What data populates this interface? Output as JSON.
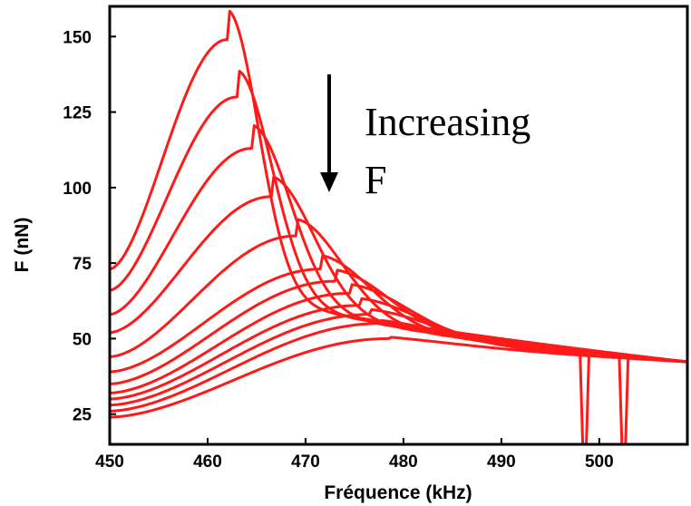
{
  "chart_data": {
    "type": "line",
    "xlabel": "Fréquence (kHz)",
    "ylabel": "F (nN)",
    "x_ticks": [
      "450",
      "460",
      "470",
      "480",
      "490",
      "500"
    ],
    "y_ticks": [
      "25",
      "50",
      "75",
      "100",
      "125",
      "150"
    ],
    "xlim": [
      450,
      509
    ],
    "ylim": [
      15,
      160
    ],
    "grid": false,
    "annotation": {
      "lines": [
        "Increasing",
        "F"
      ]
    },
    "colors": {
      "series": "#ff1a1a",
      "axis": "#000000"
    },
    "series": [
      {
        "peak_x": 462.0,
        "peak_y": 149,
        "start_y": 73
      },
      {
        "peak_x": 463.0,
        "peak_y": 130,
        "start_y": 66
      },
      {
        "peak_x": 464.5,
        "peak_y": 113,
        "start_y": 58
      },
      {
        "peak_x": 466.5,
        "peak_y": 97,
        "start_y": 52
      },
      {
        "peak_x": 469.0,
        "peak_y": 84,
        "start_y": 44
      },
      {
        "peak_x": 471.5,
        "peak_y": 73,
        "start_y": 39
      },
      {
        "peak_x": 473.0,
        "peak_y": 69,
        "start_y": 35
      },
      {
        "peak_x": 474.5,
        "peak_y": 65,
        "start_y": 32
      },
      {
        "peak_x": 475.5,
        "peak_y": 61,
        "start_y": 30
      },
      {
        "peak_x": 476.5,
        "peak_y": 58,
        "start_y": 28
      },
      {
        "peak_x": 477.5,
        "peak_y": 55,
        "start_y": 26
      },
      {
        "peak_x": 478.5,
        "peak_y": 50,
        "start_y": 24
      }
    ],
    "tail": {
      "x_at_490": 490,
      "y_at_490": 46,
      "x_end": 509,
      "y_end": 33
    },
    "dropouts": [
      {
        "x": 498.5,
        "depth_y": 15
      },
      {
        "x": 502.5,
        "depth_y": 15
      }
    ]
  }
}
